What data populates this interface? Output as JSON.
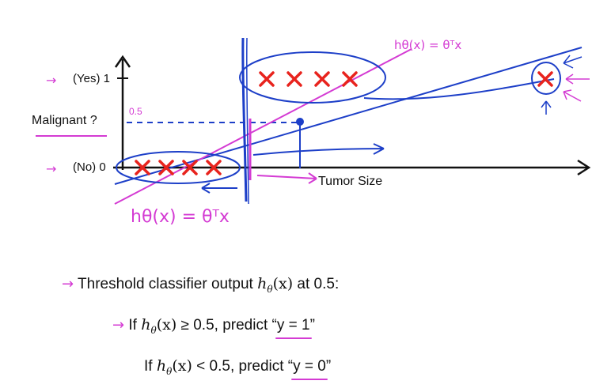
{
  "axis": {
    "y_yes": "(Yes) 1",
    "y_no": "(No) 0",
    "y_question": "Malignant ?",
    "x_label": "Tumor Size",
    "threshold_mark": "0.5"
  },
  "annotations": {
    "hypothesis_top": "hθ(x) = θᵀx",
    "hypothesis_bottom": "hθ(x) = θᵀx"
  },
  "data_marks": {
    "negative_count": 4,
    "positive_count": 4,
    "outlier_count": 1,
    "mark_glyph": "✖"
  },
  "rules": {
    "line1_prefix": "Threshold classifier output",
    "line1_suffix": "at 0.5:",
    "line2_if": "If",
    "line2_cond": "≥ 0.5, predict “",
    "line2_pred": "y = 1",
    "line2_close": "”",
    "line3_if": "If",
    "line3_cond": "< 0.5, predict “",
    "line3_pred": "y = 0",
    "line3_close": "”",
    "h_symbol": "h",
    "theta_sub": "θ",
    "x_arg": "(x)"
  },
  "colors": {
    "data_mark": "#e8231d",
    "pen_blue": "#1d3fc8",
    "pen_pink": "#d43bd3",
    "axis": "#111111"
  }
}
